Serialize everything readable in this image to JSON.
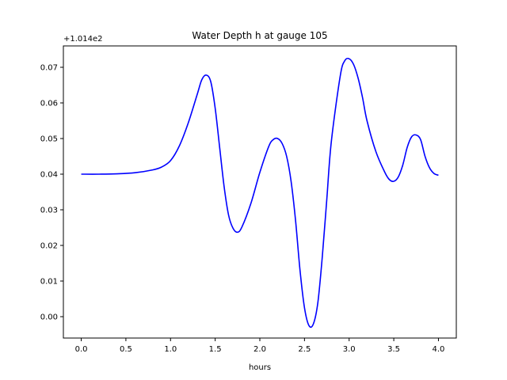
{
  "chart_data": {
    "type": "line",
    "title": "Water Depth h at gauge 105",
    "xlabel": "hours",
    "ylabel": "",
    "offset_text": "+1.014e2",
    "xlim": [
      -0.2,
      4.2
    ],
    "ylim": [
      -0.006,
      0.076
    ],
    "xticks": [
      "0.0",
      "0.5",
      "1.0",
      "1.5",
      "2.0",
      "2.5",
      "3.0",
      "3.5",
      "4.0"
    ],
    "yticks": [
      "0.00",
      "0.01",
      "0.02",
      "0.03",
      "0.04",
      "0.05",
      "0.06",
      "0.07"
    ],
    "grid": false,
    "series": [
      {
        "color": "#0000ff",
        "x": [
          0.0,
          0.2,
          0.4,
          0.6,
          0.8,
          0.9,
          1.0,
          1.1,
          1.2,
          1.3,
          1.35,
          1.4,
          1.45,
          1.5,
          1.55,
          1.6,
          1.65,
          1.7,
          1.75,
          1.8,
          1.9,
          2.0,
          2.1,
          2.15,
          2.2,
          2.25,
          2.3,
          2.35,
          2.4,
          2.45,
          2.5,
          2.55,
          2.6,
          2.65,
          2.7,
          2.75,
          2.8,
          2.9,
          2.95,
          3.0,
          3.05,
          3.1,
          3.15,
          3.2,
          3.3,
          3.4,
          3.45,
          3.5,
          3.55,
          3.6,
          3.65,
          3.7,
          3.75,
          3.8,
          3.85,
          3.9,
          3.95,
          4.0
        ],
        "y": [
          0.04,
          0.04,
          0.0401,
          0.0404,
          0.0412,
          0.042,
          0.0438,
          0.048,
          0.0545,
          0.0625,
          0.0665,
          0.0678,
          0.066,
          0.0585,
          0.0475,
          0.0365,
          0.0285,
          0.0248,
          0.0237,
          0.0252,
          0.0318,
          0.0405,
          0.0478,
          0.0497,
          0.05,
          0.0486,
          0.045,
          0.038,
          0.027,
          0.013,
          0.0025,
          -0.0025,
          -0.002,
          0.004,
          0.017,
          0.033,
          0.049,
          0.0675,
          0.0718,
          0.0724,
          0.0708,
          0.067,
          0.0615,
          0.055,
          0.0463,
          0.0405,
          0.0385,
          0.038,
          0.0392,
          0.0425,
          0.0475,
          0.0505,
          0.051,
          0.0497,
          0.045,
          0.0418,
          0.0402,
          0.0397
        ]
      }
    ]
  }
}
